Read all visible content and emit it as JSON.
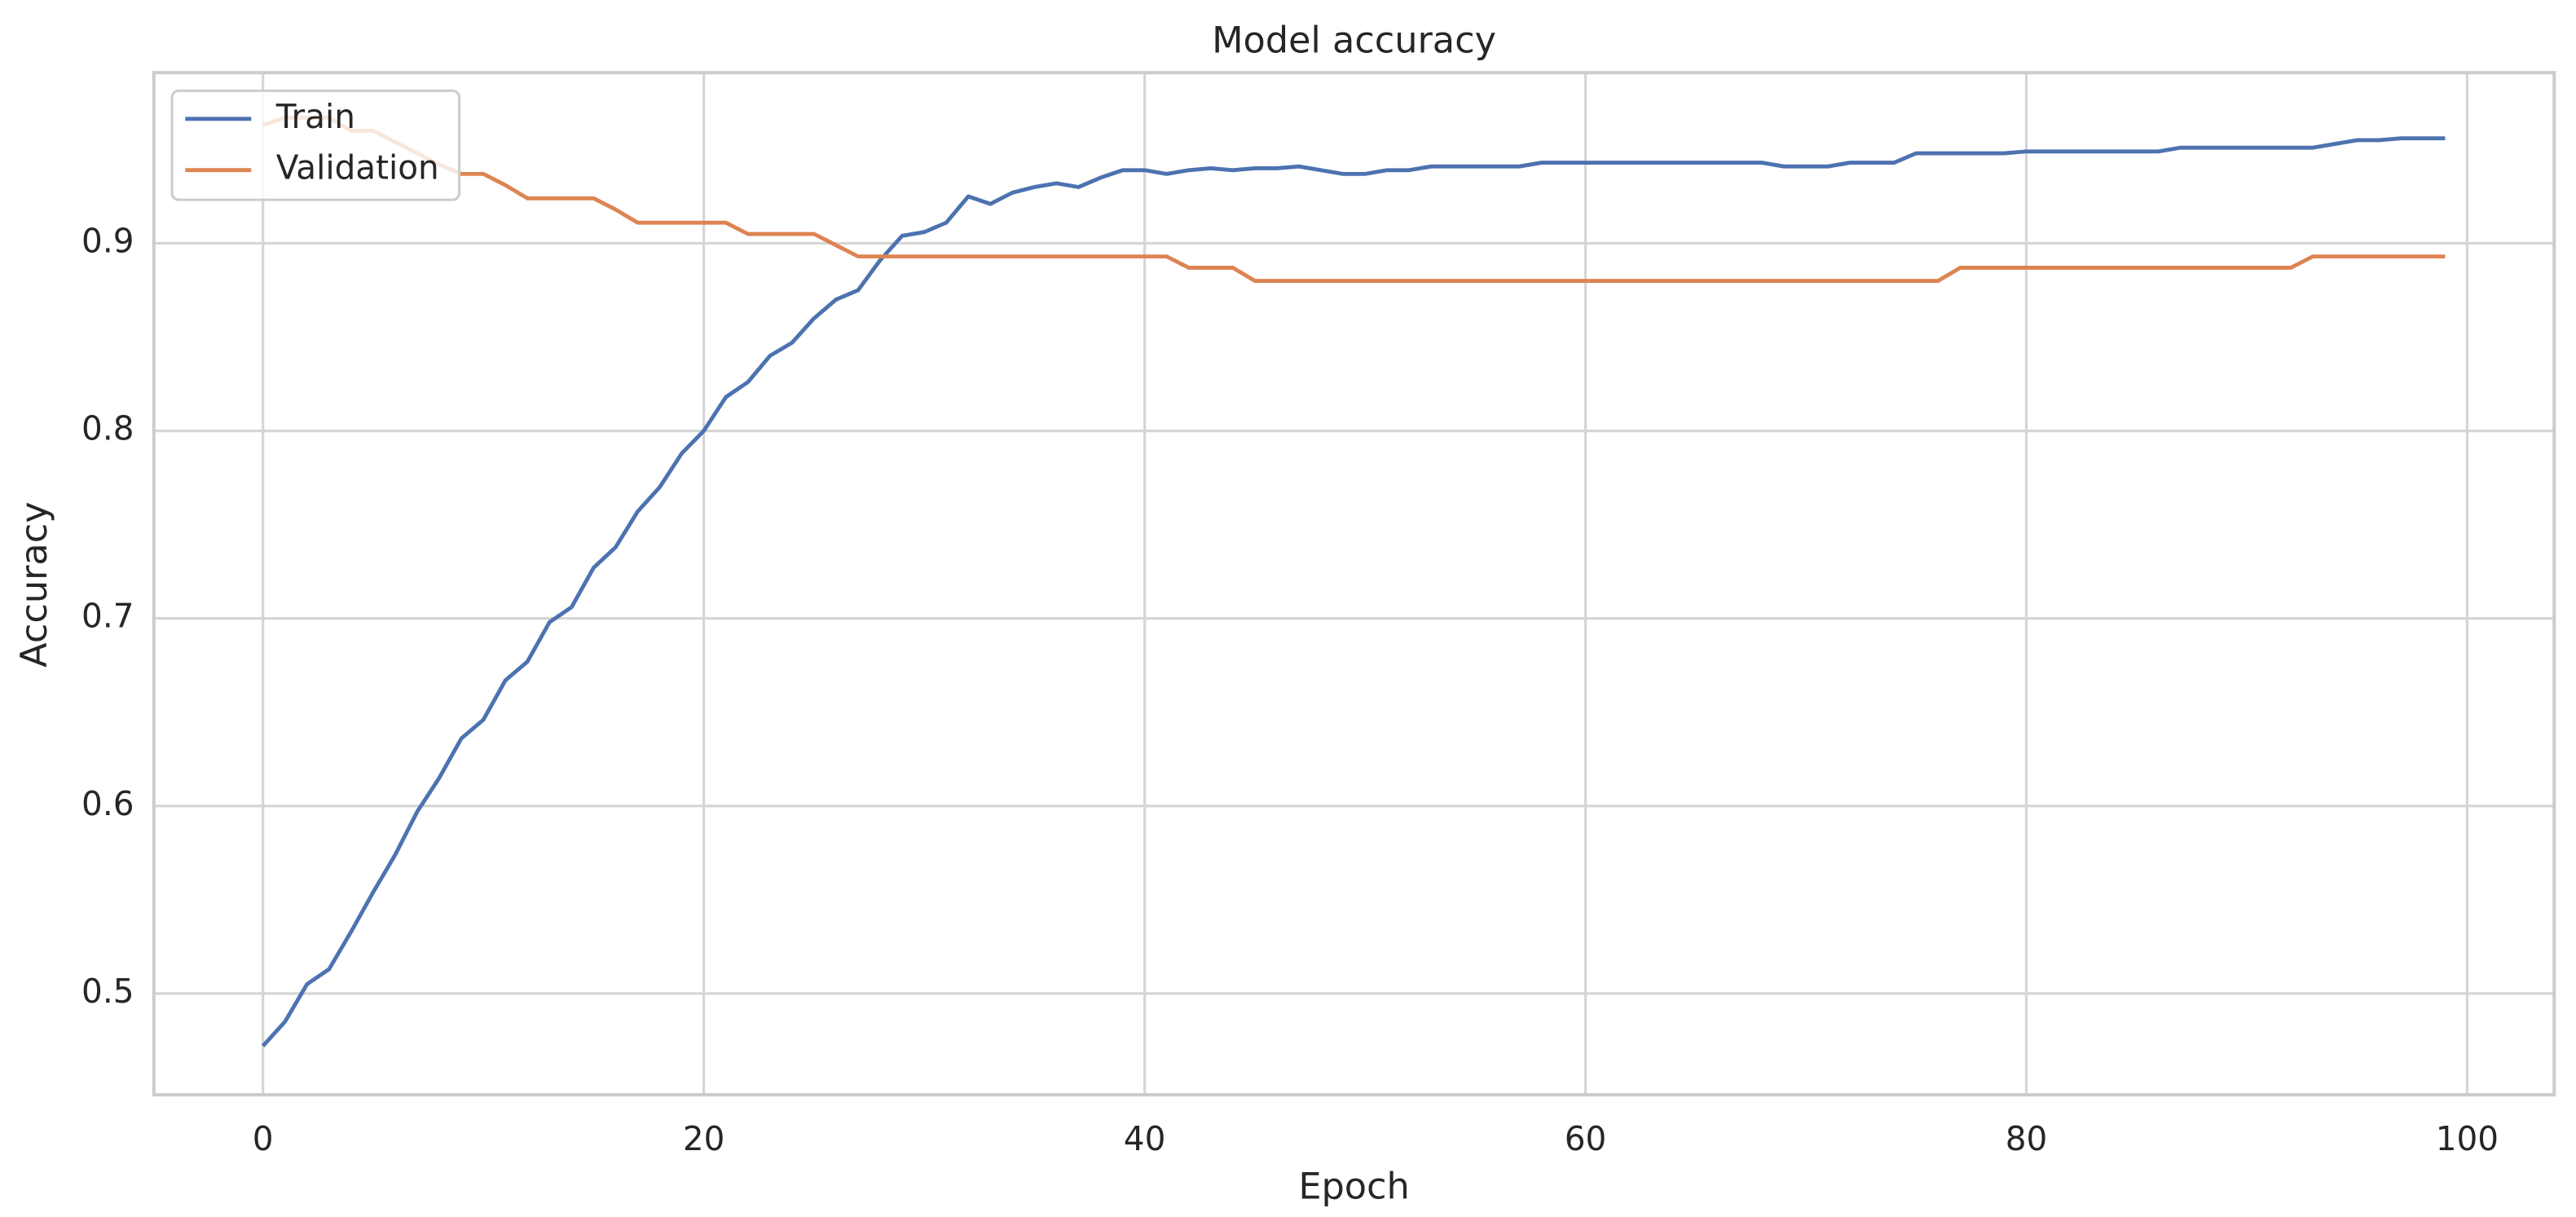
{
  "chart_data": {
    "type": "line",
    "title": "Model accuracy",
    "x_label": "Epoch",
    "y_label": "Accuracy",
    "x": [
      0,
      1,
      2,
      3,
      4,
      5,
      6,
      7,
      8,
      9,
      10,
      11,
      12,
      13,
      14,
      15,
      16,
      17,
      18,
      19,
      20,
      21,
      22,
      23,
      24,
      25,
      26,
      27,
      28,
      29,
      30,
      31,
      32,
      33,
      34,
      35,
      36,
      37,
      38,
      39,
      40,
      41,
      42,
      43,
      44,
      45,
      46,
      47,
      48,
      49,
      50,
      51,
      52,
      53,
      54,
      55,
      56,
      57,
      58,
      59,
      60,
      61,
      62,
      63,
      64,
      65,
      66,
      67,
      68,
      69,
      70,
      71,
      72,
      73,
      74,
      75,
      76,
      77,
      78,
      79,
      80,
      81,
      82,
      83,
      84,
      85,
      86,
      87,
      88,
      89,
      90,
      91,
      92,
      93,
      94,
      95,
      96,
      97,
      98,
      99
    ],
    "series": [
      {
        "name": "Train",
        "color": "#4c72b0",
        "values": [
          0.472,
          0.485,
          0.505,
          0.513,
          0.533,
          0.554,
          0.574,
          0.597,
          0.615,
          0.636,
          0.646,
          0.667,
          0.677,
          0.698,
          0.706,
          0.727,
          0.738,
          0.757,
          0.77,
          0.788,
          0.8,
          0.818,
          0.826,
          0.84,
          0.847,
          0.86,
          0.87,
          0.875,
          0.891,
          0.904,
          0.906,
          0.911,
          0.925,
          0.921,
          0.927,
          0.93,
          0.932,
          0.93,
          0.935,
          0.939,
          0.939,
          0.937,
          0.939,
          0.94,
          0.939,
          0.94,
          0.94,
          0.941,
          0.939,
          0.937,
          0.937,
          0.939,
          0.939,
          0.941,
          0.941,
          0.941,
          0.941,
          0.941,
          0.943,
          0.943,
          0.943,
          0.943,
          0.943,
          0.943,
          0.943,
          0.943,
          0.943,
          0.943,
          0.943,
          0.941,
          0.941,
          0.941,
          0.943,
          0.943,
          0.943,
          0.948,
          0.948,
          0.948,
          0.948,
          0.948,
          0.949,
          0.949,
          0.949,
          0.949,
          0.949,
          0.949,
          0.949,
          0.951,
          0.951,
          0.951,
          0.951,
          0.951,
          0.951,
          0.951,
          0.953,
          0.955,
          0.955,
          0.956,
          0.956,
          0.956
        ]
      },
      {
        "name": "Validation",
        "color": "#dd8452",
        "values": [
          0.963,
          0.967,
          0.967,
          0.967,
          0.96,
          0.96,
          0.954,
          0.948,
          0.942,
          0.937,
          0.937,
          0.931,
          0.924,
          0.924,
          0.924,
          0.924,
          0.918,
          0.911,
          0.911,
          0.911,
          0.911,
          0.911,
          0.905,
          0.905,
          0.905,
          0.905,
          0.899,
          0.893,
          0.893,
          0.893,
          0.893,
          0.893,
          0.893,
          0.893,
          0.893,
          0.893,
          0.893,
          0.893,
          0.893,
          0.893,
          0.893,
          0.893,
          0.887,
          0.887,
          0.887,
          0.88,
          0.88,
          0.88,
          0.88,
          0.88,
          0.88,
          0.88,
          0.88,
          0.88,
          0.88,
          0.88,
          0.88,
          0.88,
          0.88,
          0.88,
          0.88,
          0.88,
          0.88,
          0.88,
          0.88,
          0.88,
          0.88,
          0.88,
          0.88,
          0.88,
          0.88,
          0.88,
          0.88,
          0.88,
          0.88,
          0.88,
          0.88,
          0.887,
          0.887,
          0.887,
          0.887,
          0.887,
          0.887,
          0.887,
          0.887,
          0.887,
          0.887,
          0.887,
          0.887,
          0.887,
          0.887,
          0.887,
          0.887,
          0.893,
          0.893,
          0.893,
          0.893,
          0.893,
          0.893,
          0.893
        ]
      }
    ],
    "xlim": [
      -4.95,
      103.95
    ],
    "ylim": [
      0.446,
      0.991
    ],
    "xticks": [
      0,
      20,
      40,
      60,
      80,
      100
    ],
    "yticks": [
      0.5,
      0.6,
      0.7,
      0.8,
      0.9
    ],
    "grid": true,
    "legend": "upper left"
  }
}
